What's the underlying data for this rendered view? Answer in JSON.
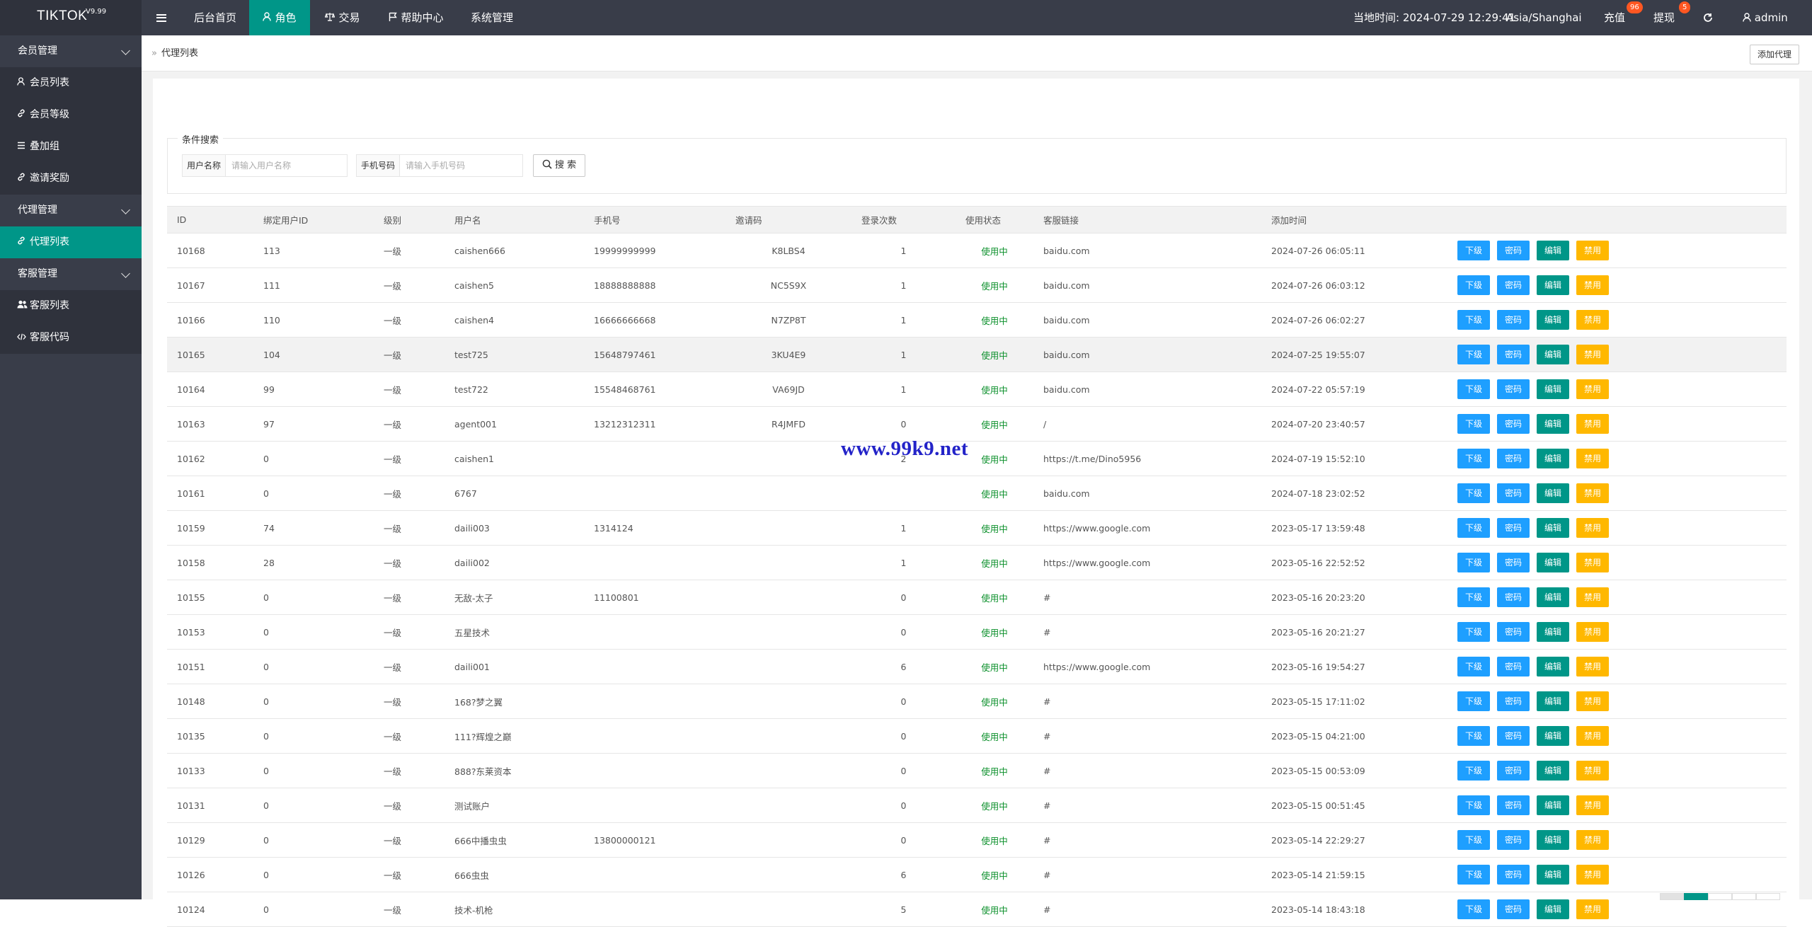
{
  "app": {
    "name": "TIKTOK",
    "version": "V9.99"
  },
  "topnav": {
    "items": [
      {
        "label": "后台首页",
        "icon": ""
      },
      {
        "label": "角色",
        "icon": "user-icon"
      },
      {
        "label": "交易",
        "icon": "scale-icon"
      },
      {
        "label": "帮助中心",
        "icon": "flag-icon"
      },
      {
        "label": "系统管理",
        "icon": ""
      }
    ],
    "clock": "当地时间: 2024-07-29 12:29:41",
    "timezone": "Asia/Shanghai",
    "recharge": {
      "label": "充值",
      "badge": "96"
    },
    "withdraw": {
      "label": "提现",
      "badge": "5"
    },
    "user": "admin"
  },
  "sidebar": {
    "group1": {
      "label": "会员管理",
      "items": [
        {
          "label": "会员列表",
          "icon": "user-icon"
        },
        {
          "label": "会员等级",
          "icon": "link-icon"
        },
        {
          "label": "叠加组",
          "icon": "list-icon"
        },
        {
          "label": "邀请奖励",
          "icon": "link-icon"
        }
      ]
    },
    "group2": {
      "label": "代理管理",
      "items": [
        {
          "label": "代理列表",
          "icon": "link-icon"
        }
      ]
    },
    "group3": {
      "label": "客服管理",
      "items": [
        {
          "label": "客服列表",
          "icon": "users-icon"
        },
        {
          "label": "客服代码",
          "icon": "code-icon"
        }
      ]
    }
  },
  "breadcrumb": "代理列表",
  "add_button": "添加代理",
  "search": {
    "legend": "条件搜索",
    "username_label": "用户名称",
    "username_placeholder": "请输入用户名称",
    "phone_label": "手机号码",
    "phone_placeholder": "请输入手机号码",
    "button": "搜 索"
  },
  "table": {
    "headers": [
      "ID",
      "绑定用户ID",
      "级别",
      "用户名",
      "手机号",
      "邀请码",
      "登录次数",
      "使用状态",
      "客服链接",
      "添加时间"
    ],
    "actions": [
      "下级",
      "密码",
      "编辑",
      "禁用"
    ],
    "rows": [
      [
        "10168",
        "113",
        "一级",
        "caishen666",
        "19999999999",
        "K8LBS4",
        "1",
        "使用中",
        "baidu.com",
        "2024-07-26 06:05:11"
      ],
      [
        "10167",
        "111",
        "一级",
        "caishen5",
        "18888888888",
        "NC5S9X",
        "1",
        "使用中",
        "baidu.com",
        "2024-07-26 06:03:12"
      ],
      [
        "10166",
        "110",
        "一级",
        "caishen4",
        "16666666668",
        "N7ZP8T",
        "1",
        "使用中",
        "baidu.com",
        "2024-07-26 06:02:27"
      ],
      [
        "10165",
        "104",
        "一级",
        "test725",
        "15648797461",
        "3KU4E9",
        "1",
        "使用中",
        "baidu.com",
        "2024-07-25 19:55:07"
      ],
      [
        "10164",
        "99",
        "一级",
        "test722",
        "15548468761",
        "VA69JD",
        "1",
        "使用中",
        "baidu.com",
        "2024-07-22 05:57:19"
      ],
      [
        "10163",
        "97",
        "一级",
        "agent001",
        "13212312311",
        "R4JMFD",
        "0",
        "使用中",
        "/",
        "2024-07-20 23:40:57"
      ],
      [
        "10162",
        "0",
        "一级",
        "caishen1",
        "",
        "",
        "2",
        "使用中",
        "https://t.me/Dino5956",
        "2024-07-19 15:52:10"
      ],
      [
        "10161",
        "0",
        "一级",
        "6767",
        "",
        "",
        "",
        "使用中",
        "baidu.com",
        "2024-07-18 23:02:52"
      ],
      [
        "10159",
        "74",
        "一级",
        "daili003",
        "1314124",
        "",
        "1",
        "使用中",
        "https://www.google.com",
        "2023-05-17 13:59:48"
      ],
      [
        "10158",
        "28",
        "一级",
        "daili002",
        "",
        "",
        "1",
        "使用中",
        "https://www.google.com",
        "2023-05-16 22:52:52"
      ],
      [
        "10155",
        "0",
        "一级",
        "无敌-太子",
        "11100801",
        "",
        "0",
        "使用中",
        "#",
        "2023-05-16 20:23:20"
      ],
      [
        "10153",
        "0",
        "一级",
        "五星技术",
        "",
        "",
        "0",
        "使用中",
        "#",
        "2023-05-16 20:21:27"
      ],
      [
        "10151",
        "0",
        "一级",
        "daili001",
        "",
        "",
        "6",
        "使用中",
        "https://www.google.com",
        "2023-05-16 19:54:27"
      ],
      [
        "10148",
        "0",
        "一级",
        "168?梦之翼",
        "",
        "",
        "0",
        "使用中",
        "#",
        "2023-05-15 17:11:02"
      ],
      [
        "10135",
        "0",
        "一级",
        "111?辉煌之巅",
        "",
        "",
        "0",
        "使用中",
        "#",
        "2023-05-15 04:21:00"
      ],
      [
        "10133",
        "0",
        "一级",
        "888?东莱资本",
        "",
        "",
        "0",
        "使用中",
        "#",
        "2023-05-15 00:53:09"
      ],
      [
        "10131",
        "0",
        "一级",
        "测试账户",
        "",
        "",
        "0",
        "使用中",
        "#",
        "2023-05-15 00:51:45"
      ],
      [
        "10129",
        "0",
        "一级",
        "666中播虫虫",
        "13800000121",
        "",
        "0",
        "使用中",
        "#",
        "2023-05-14 22:29:27"
      ],
      [
        "10126",
        "0",
        "一级",
        "666虫虫",
        "",
        "",
        "6",
        "使用中",
        "#",
        "2023-05-14 21:59:15"
      ],
      [
        "10124",
        "0",
        "一级",
        "技术-机枪",
        "",
        "",
        "5",
        "使用中",
        "#",
        "2023-05-14 18:43:18"
      ]
    ]
  },
  "watermark": "www.99k9.net",
  "colors": {
    "topbar": "#393D49",
    "accent": "#009688",
    "blue": "#1E9FFF",
    "yellow": "#FFB800",
    "badge": "#FF5722"
  }
}
